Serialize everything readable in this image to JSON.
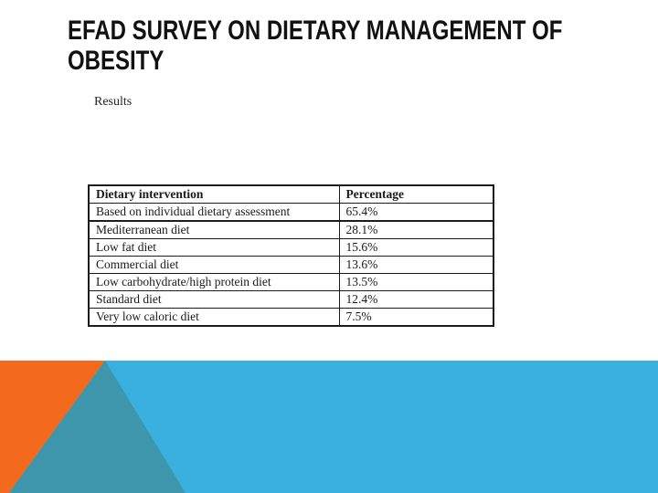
{
  "slide": {
    "title": "EFAD SURVEY ON DIETARY MANAGEMENT OF OBESITY",
    "title_line1": "EFAD SURVEY ON DIETARY MANAGEMENT OF",
    "title_line2": "OBESITY"
  },
  "content": {
    "section_label": "Results"
  },
  "table": {
    "headers": [
      "Dietary intervention",
      "Percentage"
    ],
    "rows": [
      {
        "intervention": "Based on individual dietary assessment",
        "percentage": "65.4%"
      },
      {
        "intervention": "Mediterranean diet",
        "percentage": "28.1%"
      },
      {
        "intervention": "Low fat diet",
        "percentage": "15.6%"
      },
      {
        "intervention": "Commercial diet",
        "percentage": "13.6%"
      },
      {
        "intervention": "Low carbohydrate/high protein diet",
        "percentage": "13.5%"
      },
      {
        "intervention": "Standard diet",
        "percentage": "12.4%"
      },
      {
        "intervention": "Very low caloric diet",
        "percentage": "7.5%",
        "indent": true
      }
    ]
  },
  "colors": {
    "orange": "#F3691E",
    "teal": "#3D96AC",
    "light_blue": "#3AB0DE",
    "title_text": "#111111"
  }
}
